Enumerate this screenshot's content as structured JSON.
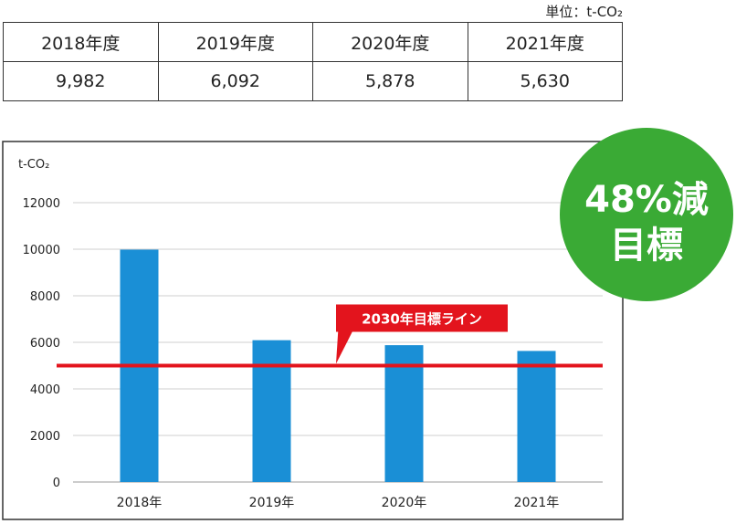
{
  "unit_label": "単位：t-CO₂",
  "table": {
    "headers": [
      "2018年度",
      "2019年度",
      "2020年度",
      "2021年度"
    ],
    "values": [
      "9,982",
      "6,092",
      "5,878",
      "5,630"
    ]
  },
  "badge": {
    "line1": "48%減",
    "line2": "目標"
  },
  "colors": {
    "bar": "#1a8fd6",
    "target_line": "#e3141d",
    "badge": "#3aaa35"
  },
  "chart_data": {
    "type": "bar",
    "categories": [
      "2018年",
      "2019年",
      "2020年",
      "2021年"
    ],
    "values": [
      9982,
      6092,
      5878,
      5630
    ],
    "ylabel": "t-CO₂",
    "ylim": [
      0,
      12000
    ],
    "yticks": [
      0,
      2000,
      4000,
      6000,
      8000,
      10000,
      12000
    ],
    "grid": true,
    "target": {
      "value": 5000,
      "label": "2030年目標ライン"
    }
  }
}
